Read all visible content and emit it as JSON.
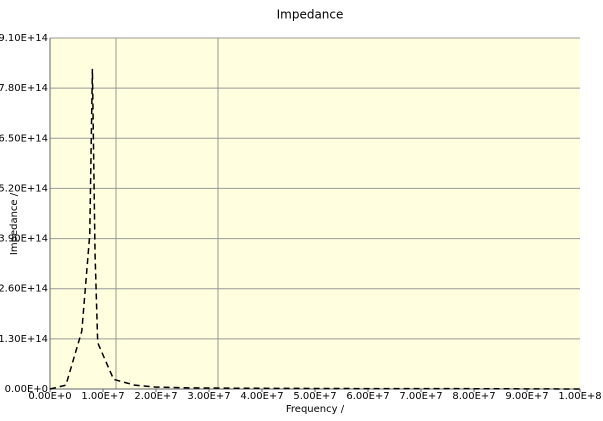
{
  "chart_data": {
    "type": "line",
    "title": "Impedance",
    "x_label": "Frequency /",
    "y_label": "Impedance /",
    "x": [
      0,
      3000000,
      6000000,
      7500000,
      8000000,
      8500000,
      9000000,
      12000000,
      16000000,
      20000000,
      26000000,
      35000000,
      60000000,
      75000000,
      100000000
    ],
    "series": [
      {
        "name": "Impedance",
        "color": "#000000",
        "values": [
          0,
          10000000000000,
          150000000000000,
          400000000000000,
          830000000000000,
          350000000000000,
          120000000000000,
          25000000000000,
          10000000000000,
          5000000000000,
          3000000000000,
          2000000000000,
          1000000000000,
          1000000000000,
          0
        ]
      }
    ],
    "xlim": [
      0,
      100000000
    ],
    "xticks": [
      {
        "value": 0,
        "label": "0.00E+0"
      },
      {
        "value": 10000000,
        "label": "1.00E+7"
      },
      {
        "value": 20000000,
        "label": "2.00E+7"
      },
      {
        "value": 30000000,
        "label": "3.00E+7"
      },
      {
        "value": 40000000,
        "label": "4.00E+7"
      },
      {
        "value": 50000000,
        "label": "5.00E+7"
      },
      {
        "value": 60000000,
        "label": "6.00E+7"
      },
      {
        "value": 70000000,
        "label": "7.00E+7"
      },
      {
        "value": 80000000,
        "label": "8.00E+7"
      },
      {
        "value": 90000000,
        "label": "9.00E+7"
      },
      {
        "value": 100000000,
        "label": "1.00E+8"
      }
    ],
    "ylim": [
      0,
      910000000000000
    ],
    "yticks": [
      {
        "value": 0,
        "label": "0.00E+0"
      },
      {
        "value": 130000000000000,
        "label": "1.30E+14"
      },
      {
        "value": 260000000000000,
        "label": "2.60E+14"
      },
      {
        "value": 390000000000000,
        "label": "3.90E+14"
      },
      {
        "value": 520000000000000,
        "label": "5.20E+14"
      },
      {
        "value": 650000000000000,
        "label": "6.50E+14"
      },
      {
        "value": 780000000000000,
        "label": "7.80E+14"
      },
      {
        "value": 910000000000000,
        "label": "9.10E+14"
      }
    ],
    "grid": true
  }
}
